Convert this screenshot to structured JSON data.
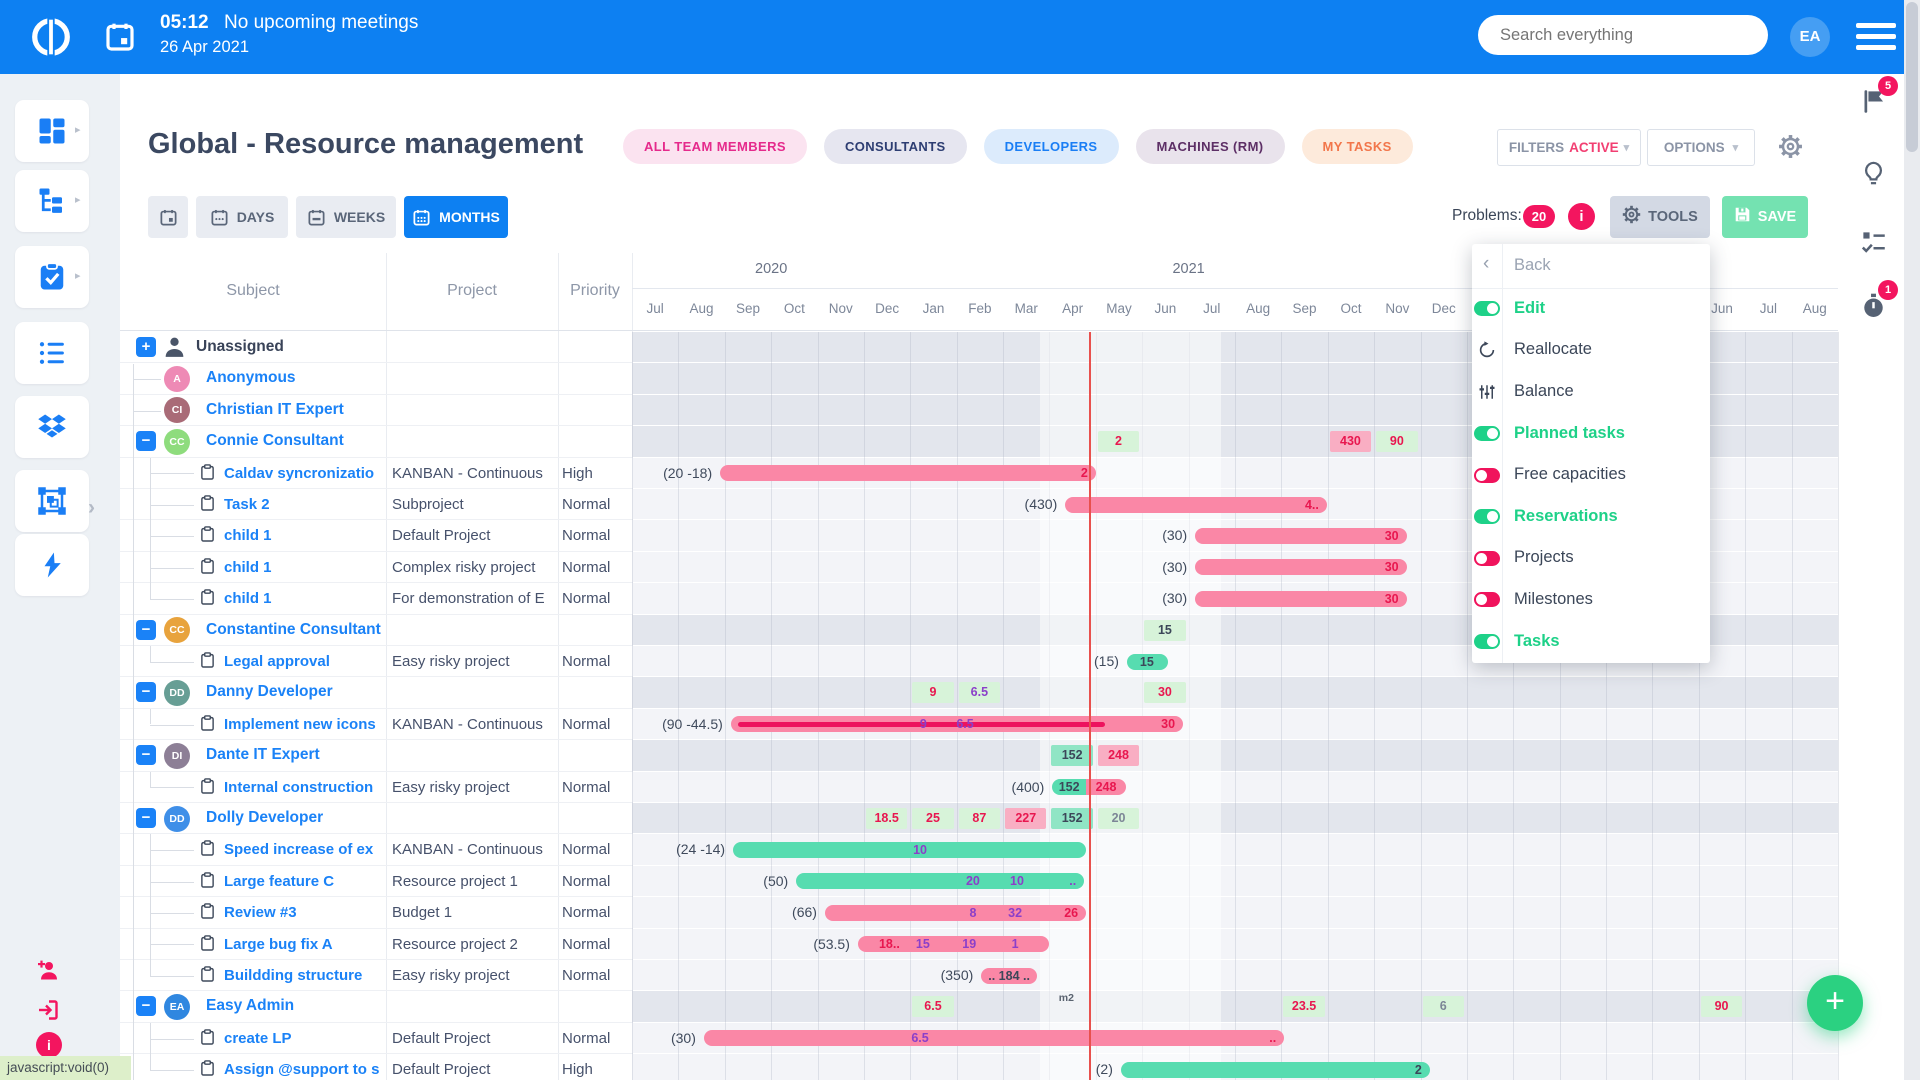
{
  "header": {
    "time": "05:12",
    "meetings": "No upcoming meetings",
    "date": "26 Apr 2021",
    "search_placeholder": "Search everything",
    "avatar_initials": "EA",
    "bg_color": "#0d80f2"
  },
  "page": {
    "title": "Global - Resource management"
  },
  "filter_pills": [
    {
      "label": "ALL TEAM MEMBERS",
      "fg": "#e52a8c",
      "bg": "#fbe3f0"
    },
    {
      "label": "CONSULTANTS",
      "fg": "#2d3d72",
      "bg": "#e6e6f0"
    },
    {
      "label": "DEVELOPERS",
      "fg": "#1a7ef5",
      "bg": "#dcebfc"
    },
    {
      "label": "MACHINES (RM)",
      "fg": "#5d2f66",
      "bg": "#e9e3ec"
    },
    {
      "label": "MY TASKS",
      "fg": "#f2764b",
      "bg": "#fdeadb"
    }
  ],
  "filters_box": {
    "prefix": "FILTERS",
    "status": "ACTIVE",
    "status_color": "#f23f72"
  },
  "options_box": {
    "label": "OPTIONS"
  },
  "view_switch": [
    {
      "label": "",
      "icon": "cal-blank",
      "active": false
    },
    {
      "label": "DAYS",
      "icon": "cal-days",
      "active": false
    },
    {
      "label": "WEEKS",
      "icon": "cal-weeks",
      "active": false
    },
    {
      "label": "MONTHS",
      "icon": "cal-months",
      "active": true
    }
  ],
  "toolbar_right": {
    "problems_label": "Problems:",
    "problems_count": "20",
    "info_glyph": "i",
    "tools_label": "TOOLS",
    "save_label": "SAVE"
  },
  "tools_menu": {
    "items": [
      {
        "label": "Back",
        "kind": "back"
      },
      {
        "label": "Edit",
        "kind": "toggle",
        "on": true
      },
      {
        "label": "Reallocate",
        "kind": "icon",
        "icon": "reallocate"
      },
      {
        "label": "Balance",
        "kind": "icon",
        "icon": "balance"
      },
      {
        "label": "Planned tasks",
        "kind": "toggle",
        "on": true
      },
      {
        "label": "Free capacities",
        "kind": "toggle",
        "on": false
      },
      {
        "label": "Reservations",
        "kind": "toggle",
        "on": true
      },
      {
        "label": "Projects",
        "kind": "toggle",
        "on": false
      },
      {
        "label": "Milestones",
        "kind": "toggle",
        "on": false
      },
      {
        "label": "Tasks",
        "kind": "toggle",
        "on": true
      }
    ]
  },
  "table": {
    "columns": [
      "Subject",
      "Project",
      "Priority"
    ]
  },
  "timeline": {
    "months": [
      "Jul",
      "Aug",
      "Sep",
      "Oct",
      "Nov",
      "Dec",
      "Jan",
      "Feb",
      "Mar",
      "Apr",
      "May",
      "Jun",
      "Jul",
      "Aug",
      "Sep",
      "Oct",
      "Nov",
      "Dec",
      "Jan",
      "Feb",
      "Mar",
      "Apr",
      "May",
      "Jun",
      "Jul",
      "Aug"
    ],
    "years": [
      {
        "label": "2020",
        "from": 0,
        "to": 5
      },
      {
        "label": "2021",
        "from": 6,
        "to": 17
      },
      {
        "label": "2022",
        "from": 18,
        "to": 25
      }
    ],
    "today_month": 9.85,
    "band": [
      8.8,
      12.7
    ]
  },
  "rows": [
    {
      "type": "group",
      "name": "Unassigned",
      "icon": "person",
      "expander": "+"
    },
    {
      "type": "user",
      "name": "Anonymous",
      "avatar": "A",
      "avatar_bg": "#ee8ab5"
    },
    {
      "type": "user",
      "name": "Christian IT Expert",
      "avatar": "CI",
      "avatar_bg": "#a96b77"
    },
    {
      "type": "group",
      "name": "Connie Consultant",
      "avatar": "CC",
      "avatar_bg": "#8edc7d",
      "expander": "-",
      "cells": [
        [
          10,
          "2",
          "green",
          "red"
        ],
        [
          15,
          "430",
          "pink",
          "red"
        ],
        [
          16,
          "90",
          "green",
          "red"
        ]
      ]
    },
    {
      "type": "task",
      "subject": "Caldav syncronizatio",
      "project": "KANBAN - Continuous",
      "priority": "High",
      "label": "(20 -18)",
      "bar": {
        "start": 1.9,
        "end": 10.0,
        "color": "pink",
        "end_text": "2",
        "end_color": "red"
      }
    },
    {
      "type": "task",
      "subject": "Task 2",
      "project": "Subproject",
      "priority": "Normal",
      "label": "(430)",
      "bar": {
        "start": 9.34,
        "end": 14.98,
        "color": "pink",
        "end_text": "4..",
        "end_color": "red"
      }
    },
    {
      "type": "task",
      "subject": "child 1",
      "project": "Default Project",
      "priority": "Normal",
      "label": "(30)",
      "bar": {
        "start": 12.14,
        "end": 16.7,
        "color": "pink",
        "end_text": "30",
        "end_color": "red"
      }
    },
    {
      "type": "task",
      "subject": "child 1",
      "project": "Complex risky project",
      "priority": "Normal",
      "label": "(30)",
      "bar": {
        "start": 12.14,
        "end": 16.7,
        "color": "pink",
        "end_text": "30",
        "end_color": "red"
      }
    },
    {
      "type": "task",
      "subject": "child 1",
      "project": "For demonstration of E",
      "priority": "Normal",
      "label": "(30)",
      "bar": {
        "start": 12.14,
        "end": 16.7,
        "color": "pink",
        "end_text": "30",
        "end_color": "red"
      },
      "last": true
    },
    {
      "type": "group",
      "name": "Constantine Consultant",
      "avatar": "CC",
      "avatar_bg": "#e8a33d",
      "expander": "-",
      "cells": [
        [
          11,
          "15",
          "green",
          "dark"
        ]
      ]
    },
    {
      "type": "task",
      "subject": "Legal approval",
      "project": "Easy risky project",
      "priority": "Normal",
      "label": "(15)",
      "bar": {
        "start": 10.67,
        "end": 11.55,
        "color": "teal",
        "texts": [
          [
            11.1,
            "15",
            "dark"
          ]
        ]
      },
      "last": true
    },
    {
      "type": "group",
      "name": "Danny Developer",
      "avatar": "DD",
      "avatar_bg": "#679e95",
      "expander": "-",
      "cells": [
        [
          6,
          "9",
          "green",
          "red"
        ],
        [
          7,
          "6.5",
          "green",
          "purple"
        ],
        [
          11,
          "30",
          "green",
          "red"
        ]
      ]
    },
    {
      "type": "task",
      "subject": "Implement new icons",
      "project": "KANBAN - Continuous",
      "priority": "Normal",
      "label": "(90 -44.5)",
      "bar": {
        "start": 2.13,
        "end": 11.88,
        "color": "pink",
        "end_text": "30",
        "end_color": "red",
        "progress": [
          2.29,
          10.2
        ],
        "texts": [
          [
            6.28,
            "9",
            "purple"
          ],
          [
            7.18,
            "6.5",
            "purple"
          ]
        ]
      },
      "last": true
    },
    {
      "type": "group",
      "name": "Dante IT Expert",
      "avatar": "DI",
      "avatar_bg": "#8d7f96",
      "expander": "-",
      "cells": [
        [
          9,
          "152",
          "teal",
          "dark"
        ],
        [
          10,
          "248",
          "pink",
          "red"
        ]
      ]
    },
    {
      "type": "task",
      "subject": "Internal construction",
      "project": "Easy risky project",
      "priority": "Normal",
      "label": "(400)",
      "segments": [
        {
          "start": 9.06,
          "end": 9.79,
          "color": "teal",
          "text": "152",
          "text_color": "dark"
        },
        {
          "start": 9.79,
          "end": 10.65,
          "color": "pink",
          "text": "248",
          "text_color": "red"
        }
      ],
      "last": true
    },
    {
      "type": "group",
      "name": "Dolly Developer",
      "avatar": "DD",
      "avatar_bg": "#3f8fe8",
      "expander": "-",
      "cells": [
        [
          5,
          "18.5",
          "green",
          "red"
        ],
        [
          6,
          "25",
          "green",
          "red"
        ],
        [
          7,
          "87",
          "green",
          "red"
        ],
        [
          8,
          "227",
          "pink",
          "red"
        ],
        [
          9,
          "152",
          "teal",
          "dark"
        ],
        [
          10,
          "20",
          "green",
          "gray"
        ]
      ]
    },
    {
      "type": "task",
      "subject": "Speed increase of ex",
      "project": "KANBAN - Continuous",
      "priority": "Normal",
      "label": "(24 -14)",
      "bar": {
        "start": 2.18,
        "end": 9.79,
        "color": "teal",
        "texts": [
          [
            6.21,
            "10",
            "purple"
          ]
        ]
      }
    },
    {
      "type": "task",
      "subject": "Large feature C",
      "project": "Resource project 1",
      "priority": "Normal",
      "label": "(50)",
      "bar": {
        "start": 3.54,
        "end": 9.75,
        "color": "teal",
        "end_text": "..",
        "end_color": "purple",
        "texts": [
          [
            7.35,
            "20",
            "purple"
          ],
          [
            8.3,
            "10",
            "purple"
          ]
        ]
      }
    },
    {
      "type": "task",
      "subject": "Review #3",
      "project": "Budget 1",
      "priority": "Normal",
      "label": "(66)",
      "bar": {
        "start": 4.16,
        "end": 9.79,
        "color": "pink",
        "end_text": "26",
        "end_color": "red",
        "texts": [
          [
            7.35,
            "8",
            "purple"
          ],
          [
            8.26,
            "32",
            "purple"
          ]
        ]
      }
    },
    {
      "type": "task",
      "subject": "Large bug fix A",
      "project": "Resource project 2",
      "priority": "Normal",
      "label": "(53.5)",
      "bar": {
        "start": 4.87,
        "end": 8.99,
        "color": "pink",
        "texts": [
          [
            5.55,
            "18..",
            "red"
          ],
          [
            6.27,
            "15",
            "purple"
          ],
          [
            7.27,
            "19",
            "purple"
          ],
          [
            8.26,
            "1",
            "purple"
          ]
        ]
      }
    },
    {
      "type": "task",
      "subject": "Buildding structure",
      "project": "Easy risky project",
      "priority": "Normal",
      "label": "(350)",
      "bar": {
        "start": 7.53,
        "end": 8.73,
        "color": "pink",
        "texts": [
          [
            8.13,
            ".. 184 ..",
            "dark"
          ]
        ]
      },
      "last": true
    },
    {
      "type": "group",
      "name": "Easy Admin",
      "avatar": "EA",
      "avatar_bg": "#2f87e0",
      "expander": "-",
      "cells": [
        [
          6,
          "6.5",
          "green",
          "red"
        ],
        [
          14,
          "23.5",
          "green",
          "red"
        ],
        [
          17,
          "6",
          "green",
          "gray"
        ],
        [
          23,
          "90",
          "green",
          "red"
        ]
      ],
      "note": [
        9.2,
        "m2"
      ]
    },
    {
      "type": "task",
      "subject": "create LP",
      "project": "Default Project",
      "priority": "Normal",
      "label": "(30)",
      "bar": {
        "start": 1.55,
        "end": 14.06,
        "color": "pink",
        "end_text": "..",
        "end_color": "red",
        "texts": [
          [
            6.21,
            "6.5",
            "purple"
          ]
        ]
      }
    },
    {
      "type": "task",
      "subject": "Assign @support to s",
      "project": "Default Project",
      "priority": "High",
      "label": "(2)",
      "bar": {
        "start": 10.54,
        "end": 17.2,
        "color": "teal",
        "end_text": "2",
        "end_color": "dark"
      },
      "last": true
    }
  ],
  "left_sidebar": {
    "items": [
      {
        "icon": "dashboard",
        "arrow": true
      },
      {
        "icon": "hierarchy",
        "arrow": true
      },
      {
        "icon": "tasks",
        "arrow": true
      },
      {
        "icon": "list",
        "arrow": false
      },
      {
        "icon": "dropbox",
        "arrow": false
      },
      {
        "icon": "frame",
        "arrow": false
      },
      {
        "icon": "lightning",
        "arrow": false
      }
    ],
    "bottom_icons": [
      "person-add",
      "exit",
      "info"
    ]
  },
  "right_rail": {
    "items": [
      {
        "icon": "flag",
        "badge": "5"
      },
      {
        "icon": "bulb",
        "badge": ""
      },
      {
        "icon": "checklist",
        "badge": ""
      },
      {
        "icon": "stopwatch",
        "badge": "1"
      }
    ]
  },
  "status_bar": {
    "text": "javascript:void(0)"
  },
  "fab": {
    "label": "+"
  },
  "colors": {
    "accent": "#0d80f2",
    "link": "#1a82f7",
    "toggle_on": "#1ed188",
    "toggle_off": "#f0135c",
    "bar_pink": "#fa87a6",
    "bar_teal": "#57dcb0",
    "progress": "#ed135e",
    "today_line": "#e8504d",
    "badge": "#f3155f",
    "fab": "#2bd181",
    "cell_bg": {
      "green": "#d7f3d9",
      "pink": "#f9aec3",
      "teal": "#90e5c5"
    },
    "cell_fg": {
      "red": "#e8174f",
      "purple": "#8b3fc9",
      "dark": "#3c4759",
      "gray": "#7c8596"
    }
  }
}
